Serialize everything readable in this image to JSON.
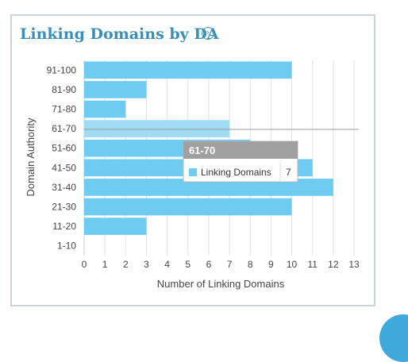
{
  "card": {
    "title": "Linking Domains by DA",
    "info_icon": "chevron-right-circle-icon"
  },
  "colors": {
    "bar": "#6ecbf2",
    "bar_highlight": "#9fdcf4",
    "tooltip_header": "#a0a0a0",
    "title": "#3a8fb7"
  },
  "chart_data": {
    "type": "bar",
    "orientation": "horizontal",
    "categories": [
      "91-100",
      "81-90",
      "71-80",
      "61-70",
      "51-60",
      "41-50",
      "31-40",
      "21-30",
      "11-20",
      "1-10"
    ],
    "values": [
      10,
      3,
      2,
      7,
      8,
      11,
      12,
      10,
      3,
      0
    ],
    "xlabel": "Number of Linking Domains",
    "ylabel": "Domain Authority",
    "xlim": [
      0,
      13
    ],
    "xticks": [
      0,
      1,
      2,
      3,
      4,
      5,
      6,
      7,
      8,
      9,
      10,
      11,
      12,
      13
    ],
    "grid": "vertical",
    "highlighted_category": "61-70",
    "tooltip": {
      "title": "61-70",
      "series": "Linking Domains",
      "value": "7"
    }
  }
}
